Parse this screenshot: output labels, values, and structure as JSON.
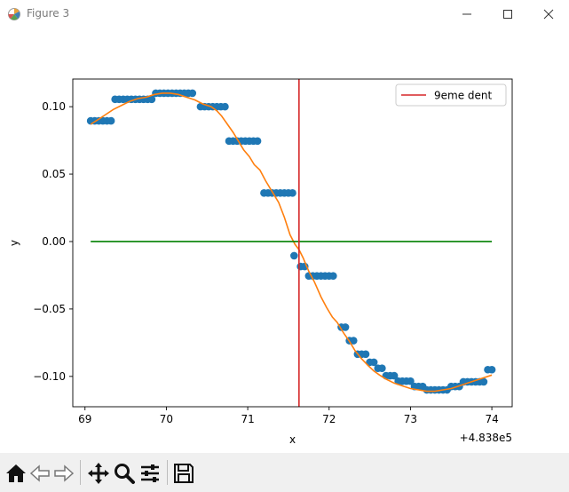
{
  "window": {
    "title": "Figure 3"
  },
  "toolbar": {
    "buttons": [
      "home-icon",
      "back-icon",
      "forward-icon",
      "pan-icon",
      "zoom-icon",
      "configure-icon",
      "save-icon"
    ]
  },
  "chart_data": {
    "type": "scatter",
    "title": "",
    "xlabel": "x",
    "ylabel": "y",
    "x_offset_label": "+4.838e5",
    "xlim": [
      68.85,
      74.25
    ],
    "ylim": [
      -0.1225,
      0.1205
    ],
    "xticks": [
      69,
      70,
      71,
      72,
      73,
      74
    ],
    "xtick_labels": [
      "69",
      "70",
      "71",
      "72",
      "73",
      "74"
    ],
    "yticks": [
      0.1,
      0.05,
      0.0,
      -0.05,
      -0.1
    ],
    "ytick_labels": [
      "0.10",
      "0.05",
      "0.00",
      "−0.05",
      "−0.10"
    ],
    "legend": {
      "position": "top-right",
      "entries": [
        {
          "label": "9eme dent",
          "color": "#d62728"
        }
      ]
    },
    "vline": {
      "x": 71.63,
      "color": "#d62728"
    },
    "hline": {
      "y": 0.0,
      "xmin": 69.07,
      "xmax": 74.0,
      "color": "#008000"
    },
    "series": [
      {
        "marker": "o",
        "color": "#1f77b4",
        "points": [
          [
            69.07,
            0.0895
          ],
          [
            69.12,
            0.0895
          ],
          [
            69.17,
            0.0895
          ],
          [
            69.22,
            0.0895
          ],
          [
            69.27,
            0.0895
          ],
          [
            69.32,
            0.0895
          ],
          [
            69.37,
            0.1055
          ],
          [
            69.42,
            0.1055
          ],
          [
            69.47,
            0.1055
          ],
          [
            69.52,
            0.1055
          ],
          [
            69.57,
            0.1055
          ],
          [
            69.62,
            0.1055
          ],
          [
            69.67,
            0.1055
          ],
          [
            69.72,
            0.1055
          ],
          [
            69.77,
            0.1055
          ],
          [
            69.82,
            0.1055
          ],
          [
            69.87,
            0.11
          ],
          [
            69.92,
            0.11
          ],
          [
            69.97,
            0.11
          ],
          [
            70.02,
            0.11
          ],
          [
            70.07,
            0.11
          ],
          [
            70.12,
            0.11
          ],
          [
            70.17,
            0.11
          ],
          [
            70.22,
            0.11
          ],
          [
            70.27,
            0.11
          ],
          [
            70.32,
            0.11
          ],
          [
            70.42,
            0.1
          ],
          [
            70.47,
            0.1
          ],
          [
            70.52,
            0.1
          ],
          [
            70.57,
            0.1
          ],
          [
            70.62,
            0.1
          ],
          [
            70.67,
            0.1
          ],
          [
            70.72,
            0.1
          ],
          [
            70.77,
            0.0745
          ],
          [
            70.82,
            0.0745
          ],
          [
            70.87,
            0.0745
          ],
          [
            70.92,
            0.0745
          ],
          [
            70.97,
            0.0745
          ],
          [
            71.02,
            0.0745
          ],
          [
            71.07,
            0.0745
          ],
          [
            71.12,
            0.0745
          ],
          [
            71.2,
            0.036
          ],
          [
            71.25,
            0.036
          ],
          [
            71.3,
            0.036
          ],
          [
            71.35,
            0.036
          ],
          [
            71.4,
            0.036
          ],
          [
            71.45,
            0.036
          ],
          [
            71.5,
            0.036
          ],
          [
            71.55,
            0.036
          ],
          [
            71.57,
            -0.0105
          ],
          [
            71.65,
            -0.0185
          ],
          [
            71.7,
            -0.0185
          ],
          [
            71.75,
            -0.0255
          ],
          [
            71.8,
            -0.0255
          ],
          [
            71.85,
            -0.0255
          ],
          [
            71.9,
            -0.0255
          ],
          [
            71.95,
            -0.0255
          ],
          [
            72.0,
            -0.0255
          ],
          [
            72.05,
            -0.0255
          ],
          [
            72.15,
            -0.0635
          ],
          [
            72.2,
            -0.0635
          ],
          [
            72.25,
            -0.0735
          ],
          [
            72.3,
            -0.0735
          ],
          [
            72.35,
            -0.0835
          ],
          [
            72.4,
            -0.0835
          ],
          [
            72.45,
            -0.0835
          ],
          [
            72.5,
            -0.0895
          ],
          [
            72.55,
            -0.0895
          ],
          [
            72.6,
            -0.094
          ],
          [
            72.65,
            -0.094
          ],
          [
            72.7,
            -0.0995
          ],
          [
            72.75,
            -0.0995
          ],
          [
            72.8,
            -0.0995
          ],
          [
            72.85,
            -0.1035
          ],
          [
            72.9,
            -0.1035
          ],
          [
            72.95,
            -0.1035
          ],
          [
            73.0,
            -0.1035
          ],
          [
            73.05,
            -0.1075
          ],
          [
            73.1,
            -0.1075
          ],
          [
            73.15,
            -0.1075
          ],
          [
            73.2,
            -0.11
          ],
          [
            73.25,
            -0.11
          ],
          [
            73.3,
            -0.11
          ],
          [
            73.35,
            -0.11
          ],
          [
            73.4,
            -0.11
          ],
          [
            73.45,
            -0.11
          ],
          [
            73.5,
            -0.1075
          ],
          [
            73.55,
            -0.1075
          ],
          [
            73.6,
            -0.1075
          ],
          [
            73.65,
            -0.104
          ],
          [
            73.7,
            -0.104
          ],
          [
            73.75,
            -0.104
          ],
          [
            73.8,
            -0.104
          ],
          [
            73.85,
            -0.104
          ],
          [
            73.9,
            -0.104
          ],
          [
            73.95,
            -0.095
          ],
          [
            74.0,
            -0.095
          ]
        ]
      },
      {
        "marker": "line",
        "color": "#ff7f0e",
        "points": [
          [
            69.07,
            0.087
          ],
          [
            69.15,
            0.09
          ],
          [
            69.25,
            0.094
          ],
          [
            69.35,
            0.098
          ],
          [
            69.45,
            0.101
          ],
          [
            69.55,
            0.104
          ],
          [
            69.65,
            0.106
          ],
          [
            69.75,
            0.107
          ],
          [
            69.85,
            0.109
          ],
          [
            69.95,
            0.11
          ],
          [
            70.05,
            0.11
          ],
          [
            70.15,
            0.109
          ],
          [
            70.25,
            0.107
          ],
          [
            70.35,
            0.105
          ],
          [
            70.45,
            0.102
          ],
          [
            70.55,
            0.1
          ],
          [
            70.62,
            0.097
          ],
          [
            70.68,
            0.093
          ],
          [
            70.75,
            0.087
          ],
          [
            70.82,
            0.081
          ],
          [
            70.88,
            0.075
          ],
          [
            70.95,
            0.068
          ],
          [
            71.02,
            0.063
          ],
          [
            71.08,
            0.057
          ],
          [
            71.15,
            0.053
          ],
          [
            71.22,
            0.045
          ],
          [
            71.3,
            0.037
          ],
          [
            71.38,
            0.029
          ],
          [
            71.45,
            0.018
          ],
          [
            71.52,
            0.005
          ],
          [
            71.58,
            -0.002
          ],
          [
            71.63,
            -0.006
          ],
          [
            71.68,
            -0.012
          ],
          [
            71.75,
            -0.022
          ],
          [
            71.82,
            -0.03
          ],
          [
            71.9,
            -0.041
          ],
          [
            71.97,
            -0.049
          ],
          [
            72.04,
            -0.056
          ],
          [
            72.1,
            -0.06
          ],
          [
            72.18,
            -0.068
          ],
          [
            72.25,
            -0.074
          ],
          [
            72.32,
            -0.081
          ],
          [
            72.4,
            -0.087
          ],
          [
            72.48,
            -0.092
          ],
          [
            72.55,
            -0.096
          ],
          [
            72.62,
            -0.099
          ],
          [
            72.7,
            -0.102
          ],
          [
            72.8,
            -0.105
          ],
          [
            72.9,
            -0.107
          ],
          [
            73.0,
            -0.109
          ],
          [
            73.1,
            -0.11
          ],
          [
            73.2,
            -0.111
          ],
          [
            73.3,
            -0.111
          ],
          [
            73.4,
            -0.11
          ],
          [
            73.5,
            -0.109
          ],
          [
            73.6,
            -0.107
          ],
          [
            73.7,
            -0.105
          ],
          [
            73.8,
            -0.103
          ],
          [
            73.9,
            -0.101
          ],
          [
            74.0,
            -0.099
          ]
        ]
      }
    ]
  }
}
